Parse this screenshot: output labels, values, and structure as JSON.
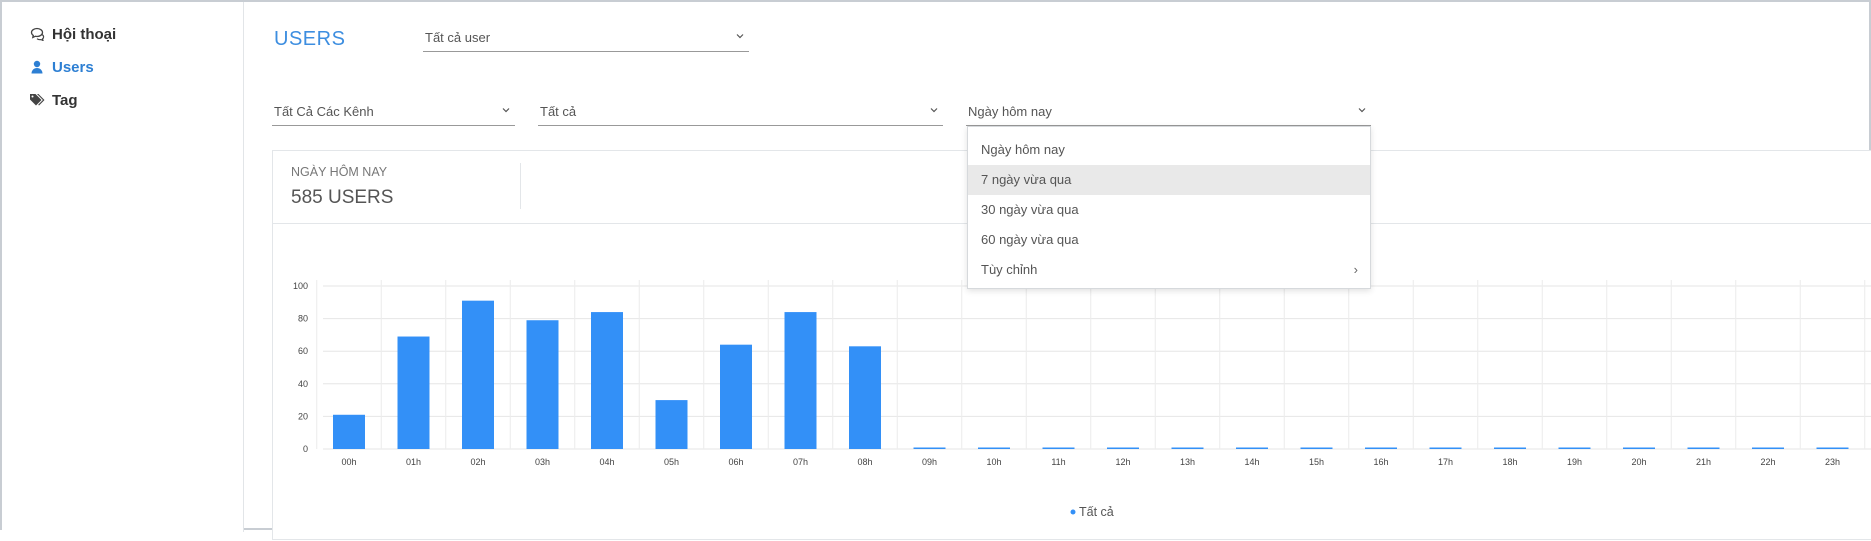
{
  "sidebar": {
    "items": [
      {
        "label": "Hội thoại",
        "icon": "chat-icon"
      },
      {
        "label": "Users",
        "icon": "user-icon",
        "active": true
      },
      {
        "label": "Tag",
        "icon": "tag-icon"
      }
    ]
  },
  "header": {
    "title": "USERS",
    "user_filter": "Tất cả user"
  },
  "filters": {
    "channel": "Tất Cả Các Kênh",
    "secondary": "Tất cả",
    "date_range": "Ngày hôm nay"
  },
  "dropdown": {
    "options": [
      "Ngày hôm nay",
      "7 ngày vừa qua",
      "30 ngày vừa qua",
      "60 ngày vừa qua",
      "Tùy chỉnh"
    ],
    "highlighted": "7 ngày vừa qua",
    "submenu_arrow": "›"
  },
  "stats": {
    "label": "NGÀY HÔM NAY",
    "value": "585 USERS"
  },
  "colors": {
    "accent": "#3d8ee0",
    "bar": "#3390f7"
  },
  "chart_data": {
    "type": "bar",
    "categories": [
      "00h",
      "01h",
      "02h",
      "03h",
      "04h",
      "05h",
      "06h",
      "07h",
      "08h",
      "09h",
      "10h",
      "11h",
      "12h",
      "13h",
      "14h",
      "15h",
      "16h",
      "17h",
      "18h",
      "19h",
      "20h",
      "21h",
      "22h",
      "23h"
    ],
    "series": [
      {
        "name": "Tất cả",
        "values": [
          21,
          69,
          91,
          79,
          84,
          30,
          64,
          84,
          63,
          0,
          0,
          0,
          0,
          0,
          0,
          0,
          0,
          0,
          0,
          0,
          0,
          0,
          0,
          0
        ]
      }
    ],
    "yticks": [
      0,
      20,
      40,
      60,
      80,
      100
    ],
    "ylim": [
      0,
      100
    ],
    "grid": true,
    "legend": "bottom-center"
  }
}
